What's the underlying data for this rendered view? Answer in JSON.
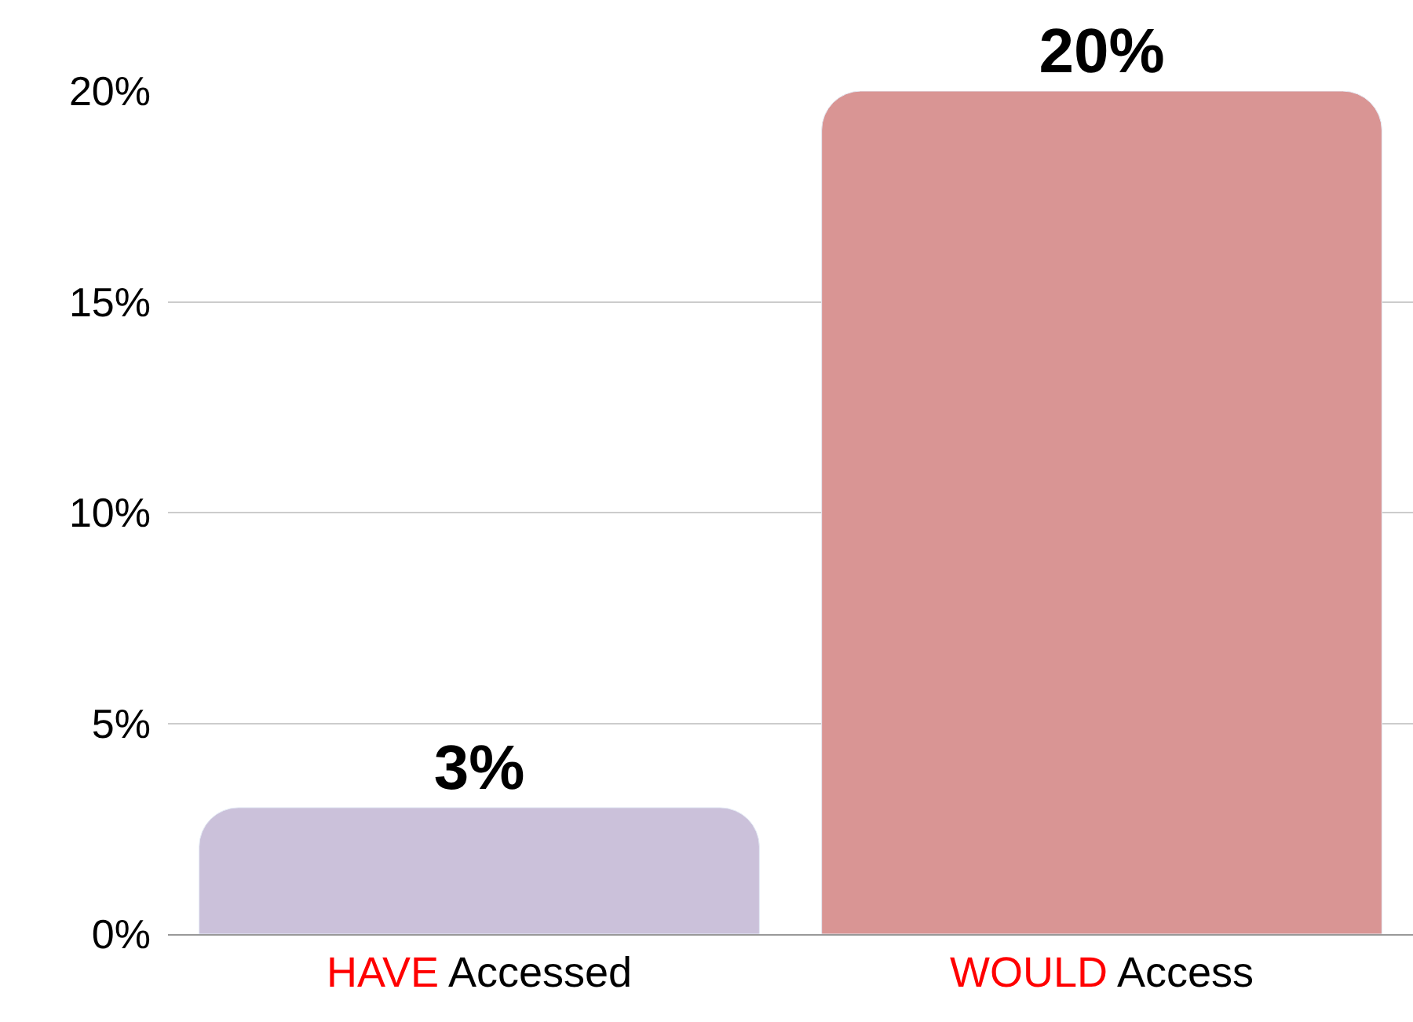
{
  "chart_data": {
    "type": "bar",
    "categories": [
      "HAVE Accessed",
      "WOULD Access"
    ],
    "values": [
      3,
      20
    ],
    "colors": [
      "#cbc1da",
      "#d99594"
    ],
    "value_labels": [
      "3%",
      "20%"
    ],
    "ylim": [
      0,
      20
    ],
    "yticks": [
      {
        "value": 0,
        "label": "0%"
      },
      {
        "value": 5,
        "label": "5%"
      },
      {
        "value": 10,
        "label": "10%"
      },
      {
        "value": 15,
        "label": "15%"
      },
      {
        "value": 20,
        "label": "20%"
      }
    ],
    "grid": "y"
  }
}
